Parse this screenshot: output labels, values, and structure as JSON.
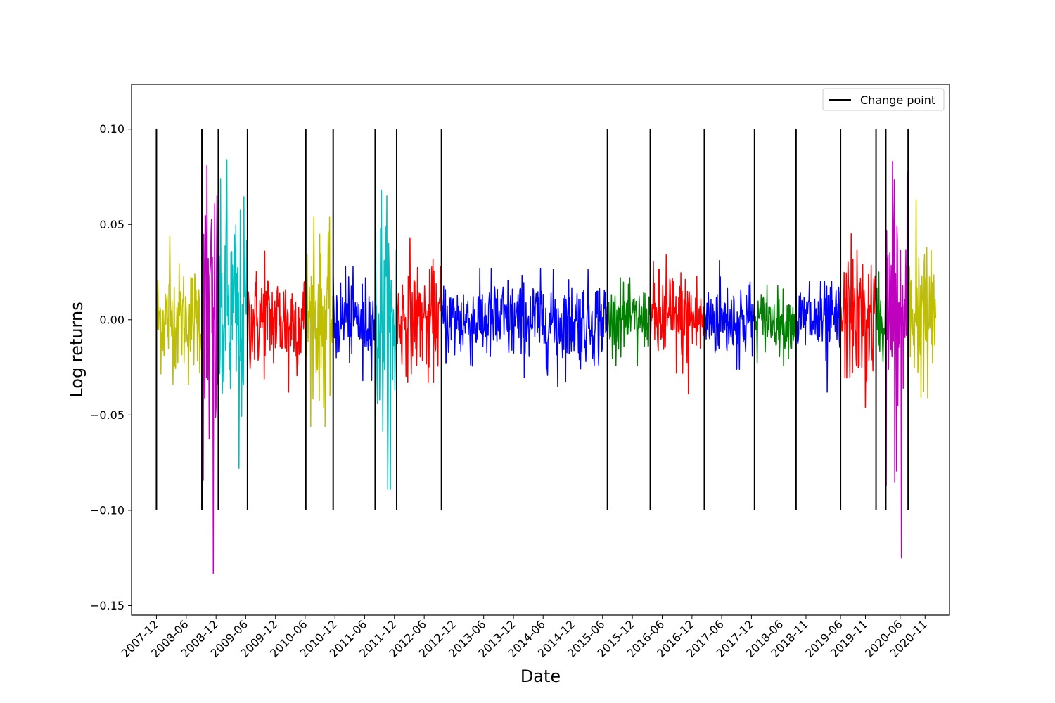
{
  "chart_data": {
    "type": "line",
    "xlabel": "Date",
    "ylabel": "Log returns",
    "ylim": [
      -0.155,
      0.1235
    ],
    "xlim": [
      "2007-07-01",
      "2021-03-31"
    ],
    "y_ticks": [
      0.1,
      0.05,
      0.0,
      -0.05,
      -0.1,
      -0.15
    ],
    "y_tick_labels": [
      "0.10",
      "0.05",
      "0.00",
      "−0.05",
      "−0.10",
      "−0.15"
    ],
    "x_ticks": [
      "2007-12",
      "2008-06",
      "2008-12",
      "2009-06",
      "2009-12",
      "2010-06",
      "2010-12",
      "2011-06",
      "2011-12",
      "2012-06",
      "2012-12",
      "2013-06",
      "2013-12",
      "2014-06",
      "2014-12",
      "2015-06",
      "2015-12",
      "2016-06",
      "2016-12",
      "2017-06",
      "2017-12",
      "2018-06",
      "2018-11",
      "2019-06",
      "2019-11",
      "2020-06",
      "2020-11"
    ],
    "x_tick_dates": [
      "2007-12-01",
      "2008-06-01",
      "2008-12-01",
      "2009-06-01",
      "2009-12-01",
      "2010-06-01",
      "2010-12-01",
      "2011-06-01",
      "2011-12-01",
      "2012-06-01",
      "2012-12-01",
      "2013-06-01",
      "2013-12-01",
      "2014-06-01",
      "2014-12-01",
      "2015-06-01",
      "2015-12-01",
      "2016-06-01",
      "2016-12-01",
      "2017-06-01",
      "2017-12-01",
      "2018-06-01",
      "2018-11-01",
      "2019-06-01",
      "2019-11-01",
      "2020-06-01",
      "2020-11-01"
    ],
    "legend": {
      "entries": [
        "Change point"
      ],
      "position": "upper right",
      "color": "#000000"
    },
    "change_points": {
      "dates": [
        "2007-12-01",
        "2008-09-05",
        "2008-12-15",
        "2009-06-12",
        "2010-06-05",
        "2010-11-20",
        "2011-08-05",
        "2011-12-15",
        "2012-09-15",
        "2015-07-01",
        "2016-03-20",
        "2017-02-15",
        "2017-12-20",
        "2018-09-01",
        "2019-06-01",
        "2020-01-05",
        "2020-03-05",
        "2020-07-20"
      ],
      "ymin": -0.1,
      "ymax": 0.1
    },
    "segments": [
      {
        "start": "2007-12-01",
        "end": "2008-09-05",
        "color": "#bfbf00",
        "ymax": 0.044,
        "ymin": -0.034
      },
      {
        "start": "2008-09-05",
        "end": "2008-12-15",
        "color": "#bf00bf",
        "ymax": 0.081,
        "ymin": -0.133
      },
      {
        "start": "2008-12-15",
        "end": "2009-06-12",
        "color": "#00bfbf",
        "ymax": 0.084,
        "ymin": -0.078
      },
      {
        "start": "2009-06-12",
        "end": "2010-06-05",
        "color": "#ff0000",
        "ymax": 0.036,
        "ymin": -0.038
      },
      {
        "start": "2010-06-05",
        "end": "2010-11-20",
        "color": "#bfbf00",
        "ymax": 0.054,
        "ymin": -0.056
      },
      {
        "start": "2010-11-20",
        "end": "2011-08-05",
        "color": "#0000ff",
        "ymax": 0.028,
        "ymin": -0.032
      },
      {
        "start": "2011-08-05",
        "end": "2011-12-15",
        "color": "#00bfbf",
        "ymax": 0.068,
        "ymin": -0.089
      },
      {
        "start": "2011-12-15",
        "end": "2012-09-15",
        "color": "#ff0000",
        "ymax": 0.043,
        "ymin": -0.033
      },
      {
        "start": "2012-09-15",
        "end": "2015-07-01",
        "color": "#0000ff",
        "ymax": 0.027,
        "ymin": -0.035
      },
      {
        "start": "2015-07-01",
        "end": "2016-03-20",
        "color": "#008000",
        "ymax": 0.022,
        "ymin": -0.024
      },
      {
        "start": "2016-03-20",
        "end": "2017-02-15",
        "color": "#ff0000",
        "ymax": 0.034,
        "ymin": -0.039
      },
      {
        "start": "2017-02-15",
        "end": "2017-12-20",
        "color": "#0000ff",
        "ymax": 0.031,
        "ymin": -0.026
      },
      {
        "start": "2017-12-20",
        "end": "2018-09-01",
        "color": "#008000",
        "ymax": 0.018,
        "ymin": -0.024
      },
      {
        "start": "2018-09-01",
        "end": "2019-06-01",
        "color": "#0000ff",
        "ymax": 0.02,
        "ymin": -0.038
      },
      {
        "start": "2019-06-01",
        "end": "2020-01-05",
        "color": "#ff0000",
        "ymax": 0.045,
        "ymin": -0.046
      },
      {
        "start": "2020-01-05",
        "end": "2020-03-05",
        "color": "#008000",
        "ymax": 0.025,
        "ymin": -0.022
      },
      {
        "start": "2020-03-05",
        "end": "2020-07-20",
        "color": "#bf00bf",
        "ymax": 0.083,
        "ymin": -0.125
      },
      {
        "start": "2020-07-20",
        "end": "2021-01-05",
        "color": "#bfbf00",
        "ymax": 0.063,
        "ymin": -0.041
      }
    ],
    "grid": false
  }
}
